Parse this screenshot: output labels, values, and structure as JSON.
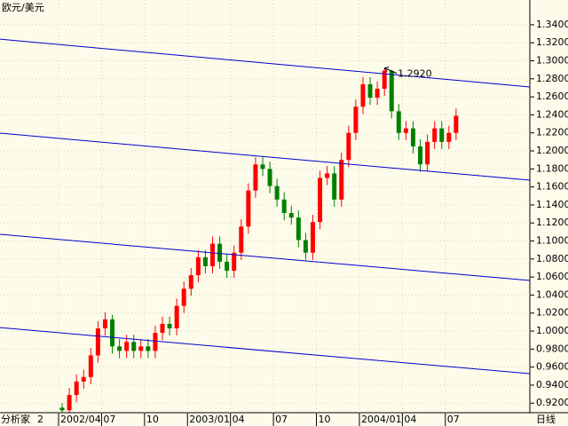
{
  "chart_data": {
    "type": "candlestick",
    "title": "欧元/美元",
    "categories": [
      "2002/04",
      null,
      null,
      null,
      null,
      null,
      "07",
      null,
      null,
      null,
      null,
      null,
      "10",
      null,
      null,
      null,
      null,
      null,
      "2003/01",
      null,
      null,
      null,
      null,
      null,
      "04",
      null,
      null,
      null,
      null,
      null,
      "07",
      null,
      null,
      null,
      null,
      null,
      "10",
      null,
      null,
      null,
      null,
      null,
      "2004/01",
      null,
      null,
      null,
      null,
      null,
      "04",
      null,
      null,
      null,
      null,
      null,
      "07",
      null
    ],
    "open": [
      0.915,
      0.912,
      0.929,
      0.944,
      0.949,
      0.973,
      1.003,
      1.013,
      0.983,
      0.978,
      0.988,
      0.978,
      0.983,
      0.978,
      0.998,
      1.008,
      1.003,
      1.028,
      1.047,
      1.062,
      1.082,
      1.072,
      1.097,
      1.077,
      1.067,
      1.087,
      1.116,
      1.156,
      1.185,
      1.18,
      1.161,
      1.146,
      1.131,
      1.126,
      1.101,
      1.087,
      1.121,
      1.17,
      1.175,
      1.146,
      1.19,
      1.22,
      1.249,
      1.274,
      1.259,
      1.269,
      1.289,
      1.244,
      1.22,
      1.225,
      1.205,
      1.185,
      1.21,
      1.225,
      1.21,
      1.22
    ],
    "high": [
      0.92,
      0.937,
      0.952,
      0.957,
      0.981,
      1.011,
      1.021,
      1.018,
      0.991,
      0.996,
      0.996,
      0.991,
      0.991,
      1.006,
      1.016,
      1.016,
      1.036,
      1.055,
      1.07,
      1.09,
      1.09,
      1.105,
      1.105,
      1.085,
      1.095,
      1.124,
      1.164,
      1.193,
      1.193,
      1.188,
      1.169,
      1.154,
      1.139,
      1.134,
      1.109,
      1.129,
      1.178,
      1.183,
      1.183,
      1.198,
      1.228,
      1.257,
      1.282,
      1.282,
      1.277,
      1.292,
      1.29,
      1.252,
      1.233,
      1.233,
      1.213,
      1.218,
      1.233,
      1.233,
      1.228,
      1.247
    ],
    "low": [
      0.91,
      0.91,
      0.921,
      0.936,
      0.941,
      0.965,
      0.995,
      0.975,
      0.97,
      0.97,
      0.97,
      0.97,
      0.97,
      0.97,
      0.99,
      0.995,
      0.995,
      1.02,
      1.039,
      1.054,
      1.064,
      1.064,
      1.069,
      1.059,
      1.059,
      1.079,
      1.108,
      1.148,
      1.172,
      1.153,
      1.138,
      1.123,
      1.118,
      1.093,
      1.079,
      1.079,
      1.113,
      1.162,
      1.138,
      1.138,
      1.182,
      1.212,
      1.241,
      1.251,
      1.251,
      1.261,
      1.236,
      1.212,
      1.212,
      1.197,
      1.177,
      1.177,
      1.202,
      1.202,
      1.202,
      1.212
    ],
    "close": [
      0.912,
      0.929,
      0.944,
      0.949,
      0.973,
      1.003,
      1.013,
      0.983,
      0.978,
      0.988,
      0.978,
      0.983,
      0.978,
      0.998,
      1.008,
      1.003,
      1.028,
      1.047,
      1.062,
      1.082,
      1.072,
      1.097,
      1.077,
      1.067,
      1.087,
      1.116,
      1.156,
      1.185,
      1.18,
      1.161,
      1.146,
      1.131,
      1.126,
      1.101,
      1.087,
      1.121,
      1.17,
      1.175,
      1.146,
      1.19,
      1.22,
      1.249,
      1.274,
      1.259,
      1.269,
      1.289,
      1.244,
      1.22,
      1.225,
      1.205,
      1.185,
      1.21,
      1.225,
      1.21,
      1.22,
      1.239
    ],
    "up_color": "#ff0000",
    "down_color": "#008000",
    "trend_lines": [
      {
        "start": 1.324,
        "end": 1.271
      },
      {
        "start": 1.2197,
        "end": 1.1675
      },
      {
        "start": 1.1074,
        "end": 1.0562
      },
      {
        "start": 1.0039,
        "end": 0.9527
      }
    ],
    "trend_color": "#0000cc",
    "annotation": {
      "value": 1.292,
      "label": "1.2920"
    },
    "ylim": [
      0.9094,
      1.3675
    ],
    "yticks": [
      {
        "value": 1.34,
        "label": "1.3400"
      },
      {
        "value": 1.32,
        "label": "1.3200"
      },
      {
        "value": 1.3,
        "label": "1.3000"
      },
      {
        "value": 1.28,
        "label": "1.2800"
      },
      {
        "value": 1.26,
        "label": "1.2600"
      },
      {
        "value": 1.24,
        "label": "1.2400"
      },
      {
        "value": 1.22,
        "label": "1.2200"
      },
      {
        "value": 1.2,
        "label": "1.2000"
      },
      {
        "value": 1.18,
        "label": "1.1800"
      },
      {
        "value": 1.16,
        "label": "1.1600"
      },
      {
        "value": 1.14,
        "label": "1.1400"
      },
      {
        "value": 1.12,
        "label": "1.1200"
      },
      {
        "value": 1.1,
        "label": "1.1000"
      },
      {
        "value": 1.08,
        "label": "1.0800"
      },
      {
        "value": 1.06,
        "label": "1.0600"
      },
      {
        "value": 1.04,
        "label": "1.0400"
      },
      {
        "value": 1.02,
        "label": "1.0200"
      },
      {
        "value": 1.0,
        "label": "1.0000"
      },
      {
        "value": 0.98,
        "label": "0.9800"
      },
      {
        "value": 0.96,
        "label": "0.9600"
      },
      {
        "value": 0.94,
        "label": "0.9400"
      },
      {
        "value": 0.92,
        "label": "0.9200"
      }
    ],
    "grid": true
  },
  "footer": {
    "brand": "分析家",
    "fragment": "2",
    "period": "日线"
  }
}
